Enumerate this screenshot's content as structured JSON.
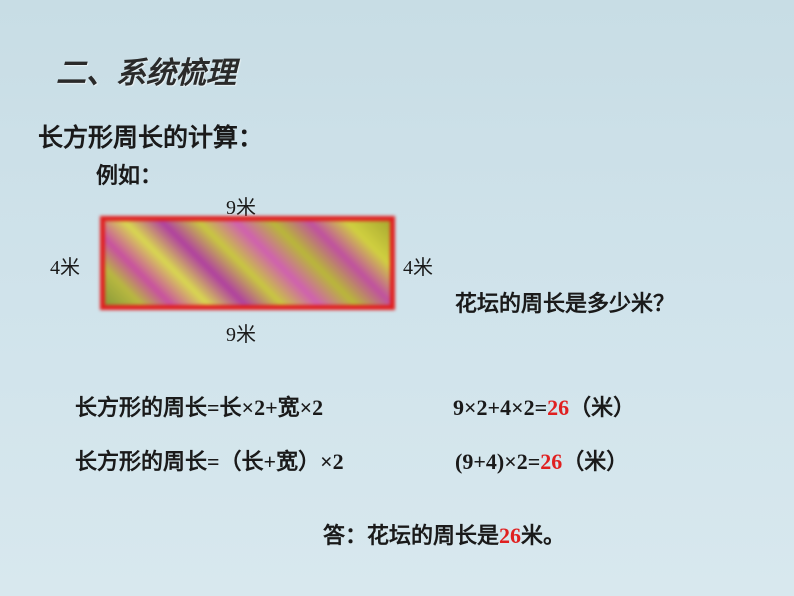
{
  "title": "二、系统梳理",
  "subtitle": "长方形周长的计算：",
  "example_label": "例如：",
  "dimensions": {
    "top": "9米",
    "bottom": "9米",
    "left": "4米",
    "right": "4米"
  },
  "flower_box": {
    "border_color": "#e02020",
    "border_width": 5,
    "fill_colors": [
      "#8a9a3a",
      "#b8b840",
      "#c850a0",
      "#d8d850",
      "#b040a0",
      "#c8c840"
    ]
  },
  "question": "花坛的周长是多少米？",
  "formula1_text": "长方形的周长=长×2+宽×2",
  "calc1_prefix": "9×2+4×2=",
  "calc1_result": "26",
  "calc1_suffix": "（米）",
  "formula2_text": "长方形的周长=（长+宽）×2",
  "calc2_prefix": "(9+4)×2=",
  "calc2_result": "26",
  "calc2_suffix": "（米）",
  "answer_prefix": "答：花坛的周长是",
  "answer_value": "26",
  "answer_suffix": "米。",
  "colors": {
    "background_top": "#c8dde5",
    "background_bottom": "#d8e8ee",
    "text": "#1a1a1a",
    "accent_red": "#e02020"
  },
  "typography": {
    "title_fontsize": 30,
    "body_fontsize": 22,
    "dim_fontsize": 20,
    "font_family": "KaiTi"
  }
}
